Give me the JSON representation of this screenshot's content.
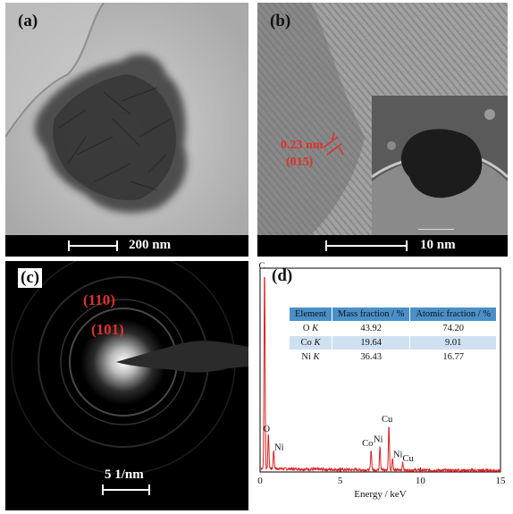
{
  "panels": {
    "a": {
      "label": "(a)",
      "scale": "200 nm"
    },
    "b": {
      "label": "(b)",
      "scale": "10 nm",
      "d_spacing": "0.23 nm",
      "plane": "(015)"
    },
    "c": {
      "label": "(c)",
      "ring1": "(110)",
      "ring2": "(101)",
      "scale": "5 1/nm"
    },
    "d": {
      "label": "(d)"
    }
  },
  "eds_table": {
    "headers": [
      "Element",
      "Mass fraction / %",
      "Atomic fraction / %"
    ],
    "rows": [
      {
        "element": "O",
        "shell": "K",
        "mass": "43.92",
        "atomic": "74.20"
      },
      {
        "element": "Co",
        "shell": "K",
        "mass": "19.64",
        "atomic": "9.01"
      },
      {
        "element": "Ni",
        "shell": "K",
        "mass": "36.43",
        "atomic": "16.77"
      }
    ]
  },
  "chart_data": {
    "type": "line",
    "xlabel": "Energy / keV",
    "ylabel": "",
    "xlim": [
      0,
      15
    ],
    "ylim": [
      0,
      100
    ],
    "xticks": [
      0,
      5,
      10,
      15
    ],
    "series_color": "#e02020",
    "peaks": [
      {
        "label": "C",
        "x": 0.28,
        "y": 98
      },
      {
        "label": "O",
        "x": 0.52,
        "y": 17
      },
      {
        "label": "Ni",
        "x": 0.85,
        "y": 9
      },
      {
        "label": "Co",
        "x": 6.93,
        "y": 10
      },
      {
        "label": "Ni",
        "x": 7.48,
        "y": 12
      },
      {
        "label": "Cu",
        "x": 8.04,
        "y": 22
      },
      {
        "label": "Ni",
        "x": 8.26,
        "y": 6
      },
      {
        "label": "Cu",
        "x": 8.9,
        "y": 4
      }
    ]
  }
}
